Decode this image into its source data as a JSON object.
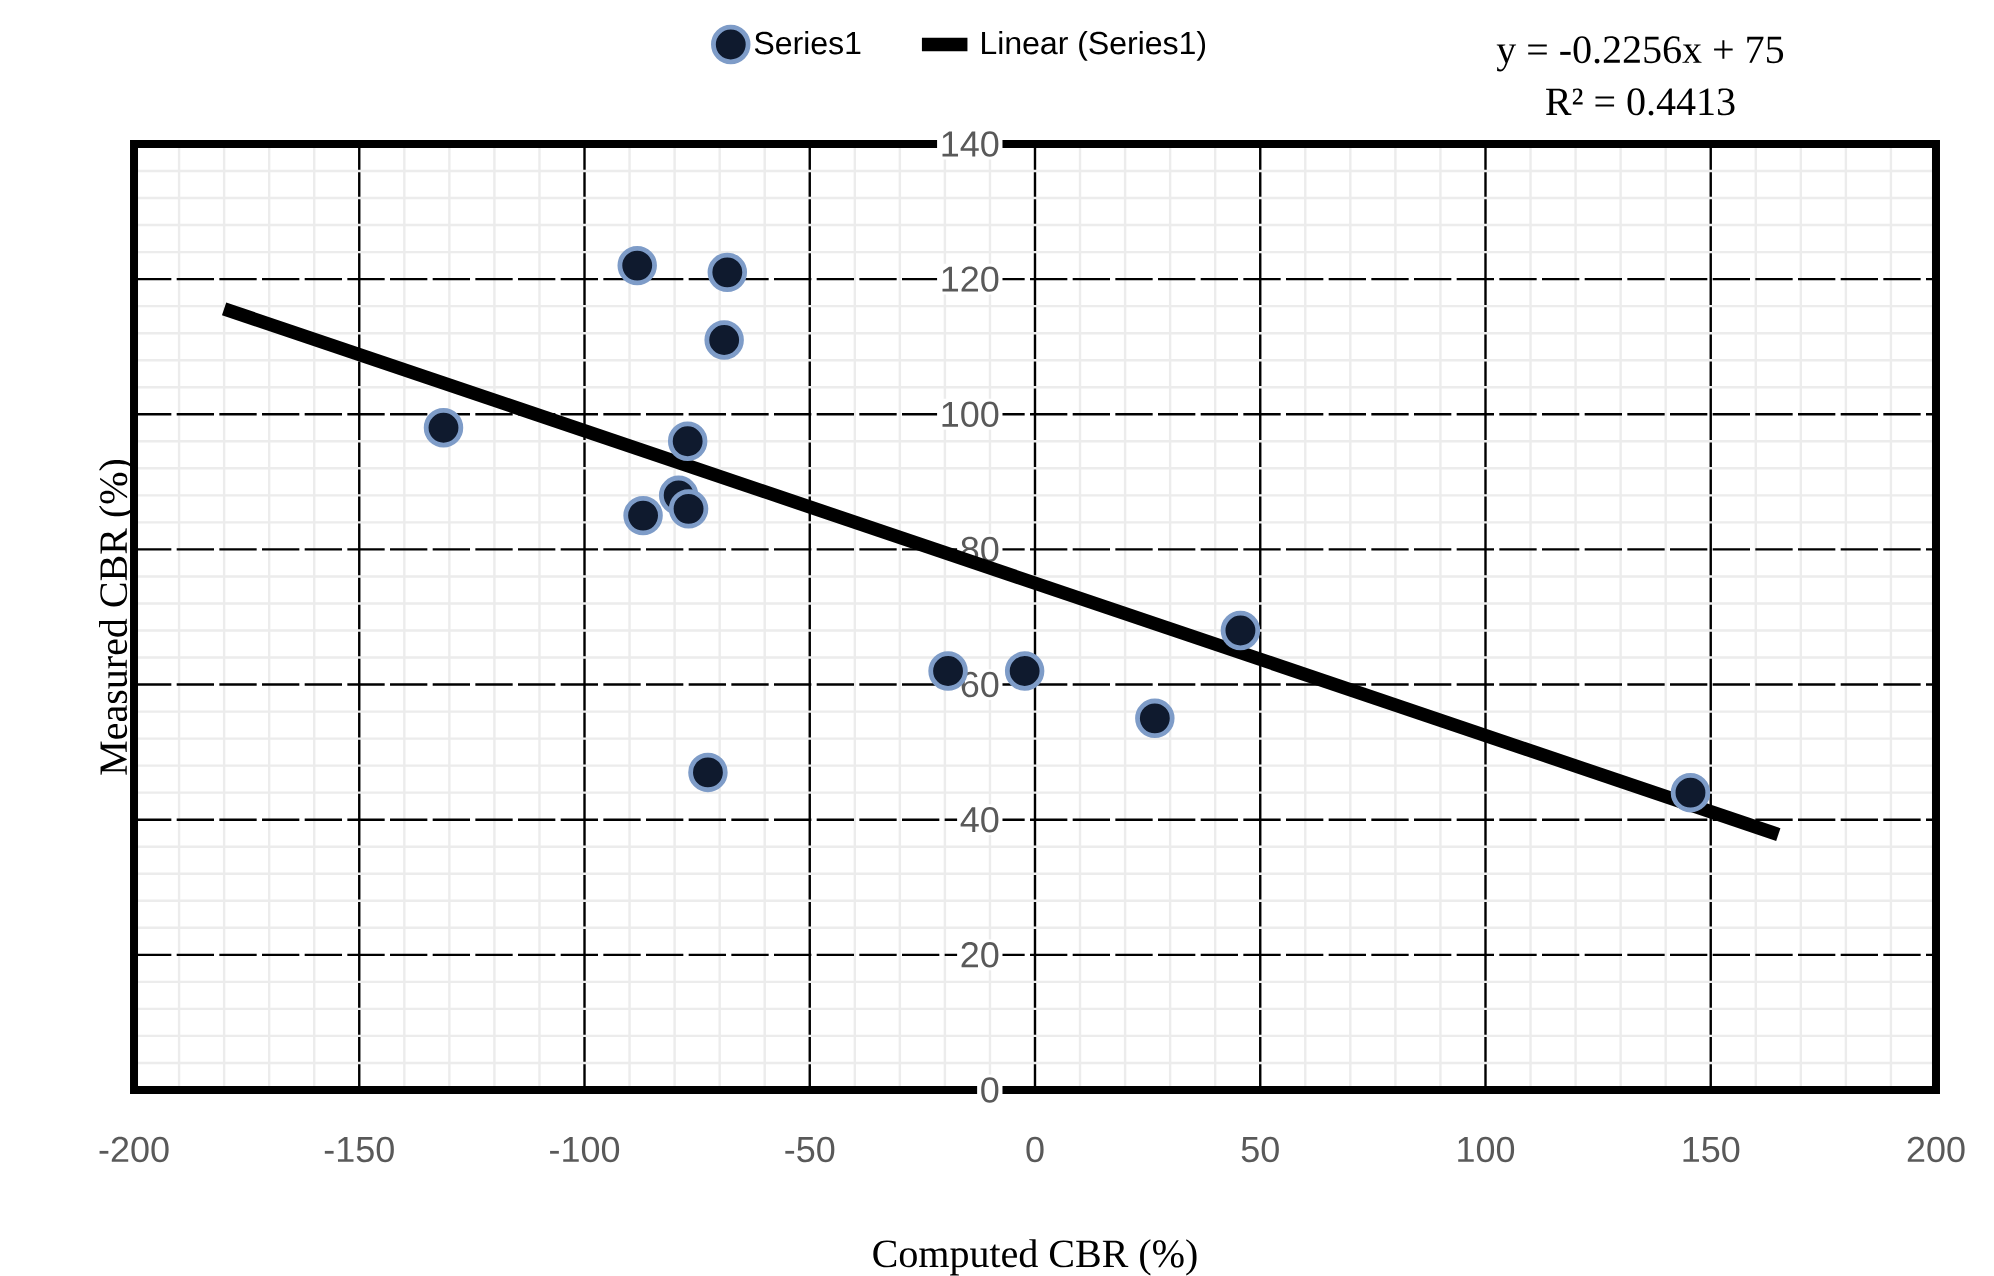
{
  "chart_data": {
    "type": "scatter",
    "xlabel": "Computed CBR (%)",
    "ylabel": "Measured CBR (%)",
    "xlim": [
      -200,
      200
    ],
    "xticks": [
      -200,
      -150,
      -100,
      -50,
      0,
      50,
      100,
      150,
      200
    ],
    "ylim": [
      0,
      140
    ],
    "yticks": [
      0,
      20,
      40,
      60,
      80,
      100,
      120,
      140
    ],
    "grid": true,
    "legend": "top",
    "series": [
      {
        "name": "Series1",
        "marker": "circle",
        "color": "#0f1a2e",
        "x": [
          -131.3,
          -88.3,
          -68.3,
          -69,
          -77.1,
          -79.1,
          -76.9,
          -87,
          -72.6,
          -19.3,
          -2.3,
          26.6,
          45.6,
          145.5
        ],
        "values": [
          98,
          122,
          121,
          111,
          96,
          88,
          86,
          85,
          47,
          62,
          62,
          55,
          68,
          44
        ]
      },
      {
        "name": "Linear (Series1)",
        "type": "line",
        "marker": "none",
        "color": "#000000",
        "line_style": "solid",
        "x": [
          -180,
          165
        ],
        "values": [
          115.6,
          37.8
        ]
      }
    ],
    "annotations": [
      "y = -0.2256x + 75",
      "R² = 0.4413"
    ]
  }
}
